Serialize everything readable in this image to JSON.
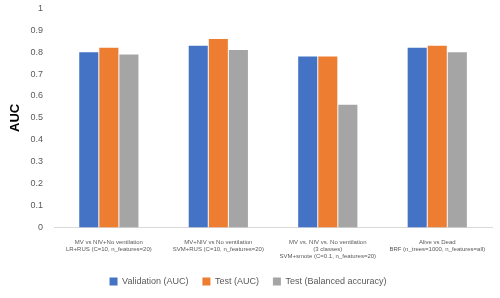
{
  "chart_data": {
    "type": "bar",
    "y_label": "AUC",
    "categories": [
      [
        "MV vs NIV+No ventilation",
        "LR+RUS (C=10, n_features=20)"
      ],
      [
        "MV+NIV vs No ventilation",
        "SVM+RUS (C=10, n_features=20)"
      ],
      [
        "MV vs. NIV vs. No ventilation",
        "(3 classes)",
        "SVM+smote (C=0.1, n_features=20)"
      ],
      [
        "Alive vs Dead",
        "BRF (n_trees=1000, n_features=all)"
      ]
    ],
    "series": [
      {
        "name": "Validation (AUC)",
        "color": "#4472c4",
        "values": [
          0.8,
          0.83,
          0.78,
          0.82
        ]
      },
      {
        "name": "Test (AUC)",
        "color": "#ed7d31",
        "values": [
          0.82,
          0.86,
          0.78,
          0.83
        ]
      },
      {
        "name": "Test (Balanced accuracy)",
        "color": "#a5a5a5",
        "values": [
          0.79,
          0.81,
          0.56,
          0.8
        ]
      }
    ],
    "ylim": [
      0,
      1
    ],
    "yticks": [
      0,
      0.1,
      0.2,
      0.3,
      0.4,
      0.5,
      0.6,
      0.7,
      0.8,
      0.9,
      1
    ],
    "grid": false,
    "legend": "bottom"
  }
}
